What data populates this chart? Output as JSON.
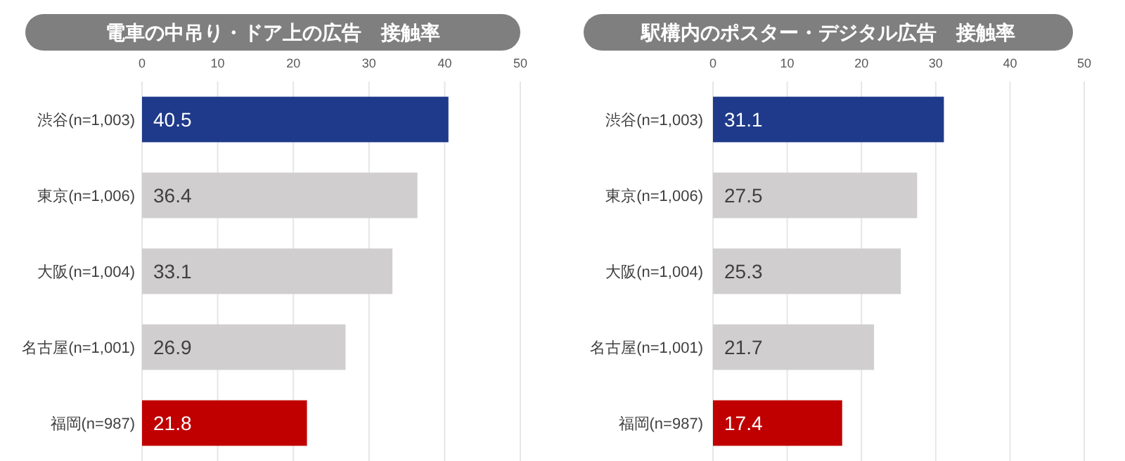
{
  "chart_data": [
    {
      "type": "bar",
      "orientation": "horizontal",
      "title": "電車の中吊り・ドア上の広告　接触率",
      "categories": [
        "渋谷(n=1,003)",
        "東京(n=1,006)",
        "大阪(n=1,004)",
        "名古屋(n=1,001)",
        "福岡(n=987)"
      ],
      "values": [
        40.5,
        36.4,
        33.1,
        26.9,
        21.8
      ],
      "colors": [
        "#1f3a8a",
        "#d0cece",
        "#d0cece",
        "#d0cece",
        "#c00000"
      ],
      "xlim": [
        0,
        50
      ],
      "xticks": [
        0,
        10,
        20,
        30,
        40,
        50
      ],
      "grid": "x",
      "data_labels": true
    },
    {
      "type": "bar",
      "orientation": "horizontal",
      "title": "駅構内のポスター・デジタル広告　接触率",
      "categories": [
        "渋谷(n=1,003)",
        "東京(n=1,006)",
        "大阪(n=1,004)",
        "名古屋(n=1,001)",
        "福岡(n=987)"
      ],
      "values": [
        31.1,
        27.5,
        25.3,
        21.7,
        17.4
      ],
      "colors": [
        "#1f3a8a",
        "#d0cece",
        "#d0cece",
        "#d0cece",
        "#c00000"
      ],
      "xlim": [
        0,
        50
      ],
      "xticks": [
        0,
        10,
        20,
        30,
        40,
        50
      ],
      "grid": "x",
      "data_labels": true
    }
  ]
}
